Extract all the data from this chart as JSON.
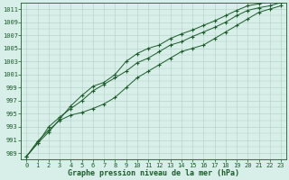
{
  "title": "Graphe pression niveau de la mer (hPa)",
  "bg_color": "#d8eee8",
  "grid_color": "#b0cfc5",
  "line_color": "#1a5c2a",
  "x_values": [
    0,
    1,
    2,
    3,
    4,
    5,
    6,
    7,
    8,
    9,
    10,
    11,
    12,
    13,
    14,
    15,
    16,
    17,
    18,
    19,
    20,
    21,
    22,
    23
  ],
  "line1": [
    988.5,
    990.8,
    992.5,
    994.0,
    994.8,
    995.2,
    995.8,
    996.5,
    997.5,
    999.0,
    1000.5,
    1001.5,
    1002.5,
    1003.5,
    1004.5,
    1005.0,
    1005.5,
    1006.5,
    1007.5,
    1008.5,
    1009.5,
    1010.5,
    1011.0,
    1011.5
  ],
  "line2": [
    988.5,
    990.5,
    993.0,
    994.5,
    995.8,
    997.0,
    998.5,
    999.5,
    1000.5,
    1001.5,
    1002.8,
    1003.5,
    1004.5,
    1005.5,
    1006.0,
    1006.8,
    1007.5,
    1008.2,
    1009.0,
    1010.0,
    1010.8,
    1011.2,
    1011.5,
    1012.0
  ],
  "line3": [
    988.5,
    990.5,
    992.2,
    994.2,
    996.2,
    997.8,
    999.2,
    999.8,
    1001.0,
    1003.0,
    1004.2,
    1005.0,
    1005.5,
    1006.5,
    1007.2,
    1007.8,
    1008.5,
    1009.2,
    1010.0,
    1010.8,
    1011.5,
    1011.8,
    1012.2,
    1012.5
  ],
  "ylim": [
    988,
    1012
  ],
  "xlim": [
    -0.5,
    23.5
  ],
  "yticks": [
    989,
    991,
    993,
    995,
    997,
    999,
    1001,
    1003,
    1005,
    1007,
    1009,
    1011
  ],
  "xticks": [
    0,
    1,
    2,
    3,
    4,
    5,
    6,
    7,
    8,
    9,
    10,
    11,
    12,
    13,
    14,
    15,
    16,
    17,
    18,
    19,
    20,
    21,
    22,
    23
  ],
  "tick_fontsize": 5,
  "label_fontsize": 6
}
